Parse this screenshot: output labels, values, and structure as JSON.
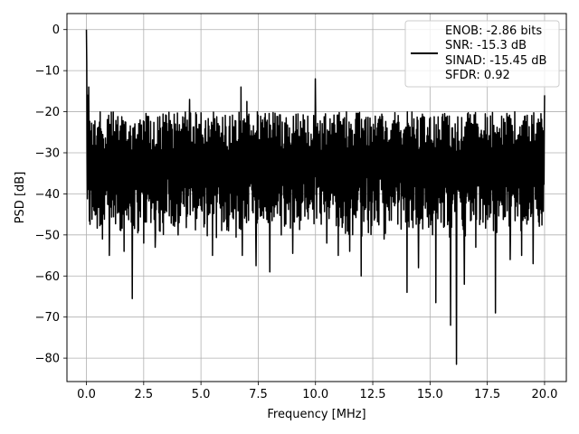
{
  "chart_data": {
    "type": "line",
    "xlabel": "Frequency [MHz]",
    "ylabel": "PSD [dB]",
    "xlim": [
      -0.85,
      20.95
    ],
    "ylim": [
      -85.7,
      3.9
    ],
    "xticks": [
      0.0,
      2.5,
      5.0,
      7.5,
      10.0,
      12.5,
      15.0,
      17.5,
      20.0
    ],
    "xtick_labels": [
      "0.0",
      "2.5",
      "5.0",
      "7.5",
      "10.0",
      "12.5",
      "15.0",
      "17.5",
      "20.0"
    ],
    "yticks": [
      0,
      -10,
      -20,
      -30,
      -40,
      -50,
      -60,
      -70,
      -80
    ],
    "ytick_labels": [
      "0",
      "−10",
      "−20",
      "−30",
      "−40",
      "−50",
      "−60",
      "−70",
      "−80"
    ],
    "grid": true,
    "legend_position": "top-right",
    "legend_lines": [
      "ENOB: -2.86 bits",
      "SNR: -15.3 dB",
      "SINAD: -15.45 dB",
      "SFDR: 0.92"
    ],
    "series": [
      {
        "color": "#000000",
        "x_range": [
          0.0,
          20.0
        ],
        "num_points": 1400,
        "noise_floor_dB": -32,
        "upper_envelope_dB": -20,
        "lower_envelope_dB": -46,
        "peaks": [
          {
            "x": 0.0,
            "y": 0.0
          },
          {
            "x": 0.02,
            "y": -8.0
          },
          {
            "x": 0.06,
            "y": -16.0
          },
          {
            "x": 0.1,
            "y": -14.0
          },
          {
            "x": 6.75,
            "y": -14.0
          },
          {
            "x": 10.0,
            "y": -12.0
          },
          {
            "x": 20.0,
            "y": -16.0
          },
          {
            "x": 4.5,
            "y": -17.0
          },
          {
            "x": 7.0,
            "y": -17.5
          }
        ],
        "dips": [
          {
            "x": 0.3,
            "y": -43.0
          },
          {
            "x": 0.5,
            "y": -41.0
          },
          {
            "x": 0.7,
            "y": -51.0
          },
          {
            "x": 1.0,
            "y": -55.0
          },
          {
            "x": 1.65,
            "y": -54.0
          },
          {
            "x": 2.0,
            "y": -65.5
          },
          {
            "x": 2.5,
            "y": -52.0
          },
          {
            "x": 3.0,
            "y": -53.0
          },
          {
            "x": 4.0,
            "y": -50.0
          },
          {
            "x": 5.5,
            "y": -55.0
          },
          {
            "x": 6.2,
            "y": -49.0
          },
          {
            "x": 6.8,
            "y": -55.0
          },
          {
            "x": 7.4,
            "y": -57.5
          },
          {
            "x": 8.0,
            "y": -59.0
          },
          {
            "x": 8.5,
            "y": -50.0
          },
          {
            "x": 9.0,
            "y": -54.5
          },
          {
            "x": 10.0,
            "y": -56.0
          },
          {
            "x": 10.5,
            "y": -52.0
          },
          {
            "x": 11.0,
            "y": -55.0
          },
          {
            "x": 11.5,
            "y": -54.0
          },
          {
            "x": 12.0,
            "y": -60.0
          },
          {
            "x": 13.0,
            "y": -51.0
          },
          {
            "x": 14.0,
            "y": -64.0
          },
          {
            "x": 14.5,
            "y": -58.0
          },
          {
            "x": 15.25,
            "y": -66.5
          },
          {
            "x": 15.9,
            "y": -72.0
          },
          {
            "x": 16.15,
            "y": -81.5
          },
          {
            "x": 16.5,
            "y": -62.0
          },
          {
            "x": 17.0,
            "y": -53.0
          },
          {
            "x": 17.85,
            "y": -69.0
          },
          {
            "x": 18.5,
            "y": -56.0
          },
          {
            "x": 19.0,
            "y": -55.0
          },
          {
            "x": 19.5,
            "y": -57.0
          }
        ]
      }
    ]
  }
}
